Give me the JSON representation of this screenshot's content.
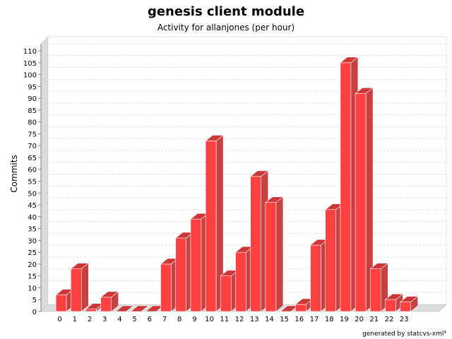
{
  "chart_data": {
    "type": "bar",
    "title": "genesis client module",
    "subtitle": "Activity for allanjones (per hour)",
    "xlabel": "",
    "ylabel": "Commits",
    "ylim": [
      0,
      110
    ],
    "yticks": [
      0,
      5,
      10,
      15,
      20,
      25,
      30,
      35,
      40,
      45,
      50,
      55,
      60,
      65,
      70,
      75,
      80,
      85,
      90,
      95,
      100,
      105,
      110
    ],
    "categories": [
      "0",
      "1",
      "2",
      "3",
      "4",
      "5",
      "6",
      "7",
      "8",
      "9",
      "10",
      "11",
      "12",
      "13",
      "14",
      "15",
      "16",
      "17",
      "18",
      "19",
      "20",
      "21",
      "22",
      "23"
    ],
    "values": [
      7,
      18,
      1,
      6,
      0,
      0,
      0,
      20,
      31,
      39,
      72,
      15,
      25,
      57,
      46,
      0,
      3,
      28,
      43,
      105,
      92,
      18,
      5,
      4
    ],
    "grid": true,
    "colors": {
      "bar_front": "#ff4040",
      "bar_top": "#cc3838",
      "bar_side": "#c84040",
      "wall": "#dcdcdc",
      "grid": "#e0e0e0"
    }
  },
  "footer": {
    "note": "generated by statcvs-xml³"
  }
}
